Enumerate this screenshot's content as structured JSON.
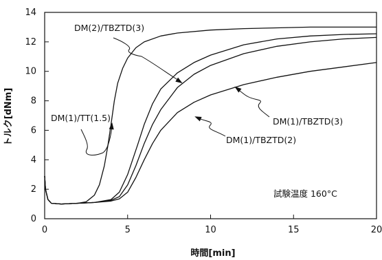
{
  "chart_data": {
    "type": "line",
    "title": "",
    "xlabel": "時間[min]",
    "ylabel": "トルク[dNm]",
    "xlim": [
      0,
      20
    ],
    "ylim": [
      0,
      14
    ],
    "xticks": [
      0,
      5,
      10,
      15,
      20
    ],
    "yticks": [
      0,
      2,
      4,
      6,
      8,
      10,
      12,
      14
    ],
    "grid": false,
    "annotation": "試験温度 160°C",
    "series": [
      {
        "name": "DM(1)/TT(1.5)",
        "x": [
          0,
          0.05,
          0.2,
          0.4,
          1,
          2,
          2.5,
          3,
          3.3,
          3.6,
          3.8,
          4.0,
          4.2,
          4.4,
          4.7,
          5.0,
          5.5,
          6,
          7,
          8,
          10,
          12,
          14,
          16,
          18,
          20
        ],
        "y": [
          2.9,
          2.0,
          1.3,
          1.05,
          1.0,
          1.05,
          1.15,
          1.6,
          2.3,
          3.6,
          4.9,
          6.4,
          8.0,
          9.2,
          10.2,
          10.9,
          11.6,
          12.0,
          12.4,
          12.6,
          12.8,
          12.9,
          12.95,
          13.0,
          13.0,
          13.0
        ]
      },
      {
        "name": "DM(2)/TBZTD(3)",
        "x": [
          0,
          0.05,
          0.2,
          0.4,
          1,
          2,
          3,
          4,
          4.5,
          5,
          5.3,
          5.6,
          6,
          6.5,
          7,
          8,
          9,
          10,
          12,
          14,
          16,
          18,
          20
        ],
        "y": [
          2.9,
          2.0,
          1.3,
          1.05,
          1.0,
          1.05,
          1.1,
          1.3,
          1.8,
          3.0,
          4.0,
          5.0,
          6.4,
          7.8,
          8.8,
          9.9,
          10.6,
          11.1,
          11.8,
          12.2,
          12.4,
          12.5,
          12.55
        ]
      },
      {
        "name": "DM(1)/TBZTD(3)",
        "x": [
          0,
          0.05,
          0.2,
          0.4,
          1,
          2,
          3,
          4,
          4.5,
          5,
          5.5,
          6,
          6.5,
          7,
          8,
          9,
          10,
          12,
          14,
          16,
          18,
          20
        ],
        "y": [
          2.9,
          2.0,
          1.3,
          1.05,
          1.0,
          1.05,
          1.1,
          1.25,
          1.5,
          2.3,
          3.6,
          5.1,
          6.4,
          7.4,
          8.9,
          9.8,
          10.4,
          11.2,
          11.7,
          12.0,
          12.2,
          12.3
        ]
      },
      {
        "name": "DM(1)/TBZTD(2)",
        "x": [
          0,
          0.05,
          0.2,
          0.4,
          1,
          2,
          3,
          4,
          4.5,
          5,
          5.5,
          6,
          6.5,
          7,
          8,
          9,
          10,
          12,
          14,
          16,
          18,
          20
        ],
        "y": [
          2.9,
          2.0,
          1.3,
          1.05,
          1.0,
          1.05,
          1.1,
          1.2,
          1.35,
          1.8,
          2.8,
          4.0,
          5.1,
          6.0,
          7.2,
          7.9,
          8.4,
          9.1,
          9.6,
          10.0,
          10.3,
          10.6
        ]
      }
    ]
  }
}
